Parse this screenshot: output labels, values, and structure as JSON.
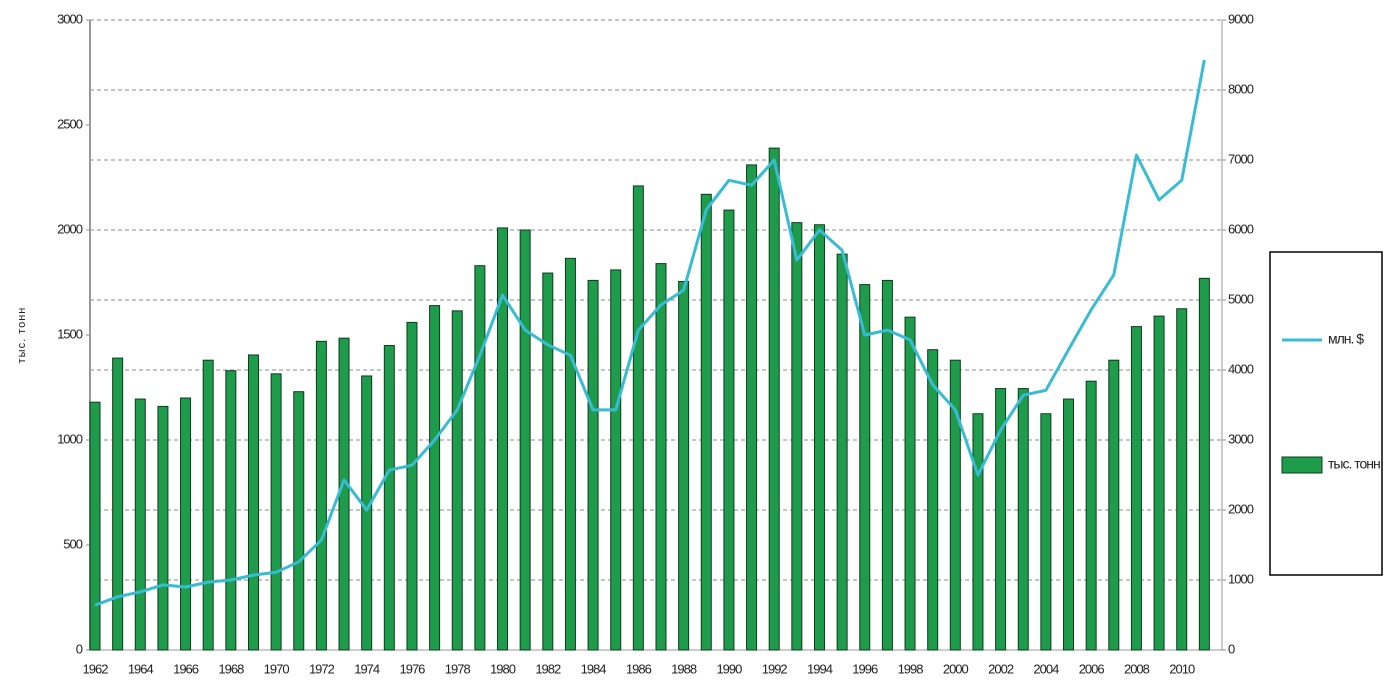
{
  "chart_data": {
    "type": "bar-line",
    "y_label": "тыс. тонн",
    "categories": [
      "1962",
      null,
      "1964",
      null,
      "1966",
      null,
      "1968",
      null,
      "1970",
      null,
      "1972",
      null,
      "1974",
      null,
      "1976",
      null,
      "1978",
      null,
      "1980",
      null,
      "1982",
      null,
      "1984",
      null,
      "1986",
      null,
      "1988",
      null,
      "1990",
      null,
      "1992",
      null,
      "1994",
      null,
      "1996",
      null,
      "1998",
      null,
      "2000",
      null,
      "2002",
      null,
      "2004",
      null,
      "2006",
      null,
      "2008",
      null,
      "2010",
      null
    ],
    "series": [
      {
        "name": "тыс. тонн",
        "type": "bar",
        "color": "#1e9c4c",
        "axis": "y",
        "values": [
          1180,
          1390,
          1195,
          1160,
          1200,
          1380,
          1330,
          1405,
          1315,
          1230,
          1470,
          1485,
          1305,
          1450,
          1560,
          1640,
          1615,
          1830,
          2010,
          2000,
          1795,
          1865,
          1760,
          1810,
          2210,
          1840,
          1755,
          2170,
          2095,
          2310,
          2390,
          2035,
          2025,
          1885,
          1740,
          1760,
          1585,
          1430,
          1380,
          1125,
          1245,
          1245,
          1125,
          1195,
          1280,
          1380,
          1540,
          1590,
          1625,
          1770
        ]
      },
      {
        "name": "млн. $",
        "type": "line",
        "color": "#38bcd4",
        "axis": "y2",
        "values": [
          640,
          760,
          830,
          930,
          900,
          970,
          1000,
          1070,
          1110,
          1260,
          1570,
          2430,
          2000,
          2570,
          2640,
          3000,
          3430,
          4210,
          5070,
          4570,
          4360,
          4210,
          3430,
          3430,
          4570,
          4930,
          5140,
          6290,
          6710,
          6640,
          7000,
          5570,
          6000,
          5710,
          4500,
          4570,
          4430,
          3790,
          3430,
          2500,
          3140,
          3640,
          3710,
          4290,
          4860,
          5360,
          7070,
          6430,
          6710,
          8430
        ]
      }
    ],
    "ylim": [
      0,
      3000
    ],
    "yticks": [
      0,
      500,
      1000,
      1500,
      2000,
      2500,
      3000
    ],
    "y2lim": [
      0,
      9000
    ],
    "y2ticks": [
      0,
      1000,
      2000,
      3000,
      4000,
      5000,
      6000,
      7000,
      8000,
      9000
    ],
    "grid": true,
    "legend": "right"
  }
}
